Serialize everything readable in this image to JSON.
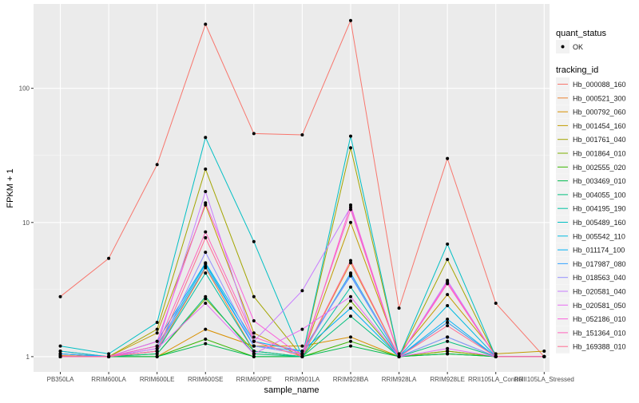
{
  "chart_data": {
    "type": "line",
    "title": "",
    "xlabel": "sample_name",
    "ylabel": "FPKM + 1",
    "yscale": "log10",
    "ylim": [
      0.77,
      425
    ],
    "yticks": [
      1,
      10,
      100
    ],
    "ytick_labels": [
      "1",
      "10",
      "100"
    ],
    "grid": true,
    "legend_placement": "right",
    "categories": [
      "PB350LA",
      "RRIM600LA",
      "RRIM600LE",
      "RRIM600SE",
      "RRIM600PE",
      "RRIM901LA",
      "RRIM928BA",
      "RRIM928LA",
      "RRIM928LE",
      "RRII105LA_Control",
      "RRII105LA_Stressed"
    ],
    "shape_legend": {
      "title": "quant_status",
      "entries": [
        "OK"
      ]
    },
    "color_legend_title": "tracking_id",
    "series": [
      {
        "name": "Hb_000088_160",
        "color": "#F8766D",
        "values": [
          2.8,
          5.4,
          27,
          300,
          46,
          45,
          320,
          2.3,
          30,
          2.5,
          1.0
        ]
      },
      {
        "name": "Hb_000521_300",
        "color": "#EA8331",
        "values": [
          1.02,
          1.0,
          1.1,
          4.6,
          1.1,
          1.0,
          5.0,
          1.0,
          1.8,
          1.0,
          1.0
        ]
      },
      {
        "name": "Hb_000792_060",
        "color": "#D89000",
        "values": [
          1.05,
          1.0,
          1.0,
          1.6,
          1.2,
          1.2,
          1.4,
          1.0,
          1.1,
          1.0,
          1.0
        ]
      },
      {
        "name": "Hb_001454_160",
        "color": "#C09B00",
        "values": [
          1.05,
          1.0,
          1.5,
          13.5,
          1.5,
          1.0,
          10.0,
          1.05,
          2.9,
          1.05,
          1.1
        ]
      },
      {
        "name": "Hb_001761_040",
        "color": "#A3A500",
        "values": [
          1.1,
          1.0,
          1.6,
          25,
          2.8,
          1.0,
          36,
          1.0,
          5.3,
          1.0,
          1.0
        ]
      },
      {
        "name": "Hb_001864_010",
        "color": "#7CAE00",
        "values": [
          1.0,
          1.0,
          1.05,
          2.7,
          1.1,
          1.0,
          2.6,
          1.0,
          1.1,
          1.0,
          1.0
        ]
      },
      {
        "name": "Hb_002555_020",
        "color": "#39B600",
        "values": [
          1.0,
          1.0,
          1.0,
          1.35,
          1.0,
          1.0,
          1.3,
          1.0,
          1.05,
          1.0,
          1.0
        ]
      },
      {
        "name": "Hb_003469_010",
        "color": "#00BB4E",
        "values": [
          1.0,
          1.0,
          1.0,
          1.25,
          1.0,
          1.0,
          1.2,
          1.0,
          1.05,
          1.0,
          1.0
        ]
      },
      {
        "name": "Hb_004055_100",
        "color": "#00BF7D",
        "values": [
          1.0,
          1.0,
          1.05,
          2.8,
          1.05,
          1.0,
          2.0,
          1.0,
          1.3,
          1.0,
          1.0
        ]
      },
      {
        "name": "Hb_004195_190",
        "color": "#00C1A3",
        "values": [
          1.0,
          1.0,
          1.1,
          4.2,
          1.1,
          1.0,
          3.3,
          1.0,
          1.4,
          1.0,
          1.0
        ]
      },
      {
        "name": "Hb_005489_160",
        "color": "#00BFC4",
        "values": [
          1.2,
          1.05,
          1.8,
          43,
          7.2,
          1.0,
          44,
          1.0,
          6.9,
          1.0,
          1.0
        ]
      },
      {
        "name": "Hb_005542_110",
        "color": "#00BAE0",
        "values": [
          1.1,
          1.0,
          1.2,
          4.9,
          1.2,
          1.05,
          4.2,
          1.0,
          2.4,
          1.0,
          1.0
        ]
      },
      {
        "name": "Hb_011174_100",
        "color": "#00B0F6",
        "values": [
          1.05,
          1.0,
          1.3,
          5.0,
          1.3,
          1.1,
          2.3,
          1.0,
          1.9,
          1.0,
          1.0
        ]
      },
      {
        "name": "Hb_017987_080",
        "color": "#35A2FF",
        "values": [
          1.05,
          1.0,
          1.15,
          4.7,
          1.2,
          1.1,
          4.0,
          1.0,
          1.8,
          1.0,
          1.0
        ]
      },
      {
        "name": "Hb_018563_040",
        "color": "#9590FF",
        "values": [
          1.0,
          1.0,
          1.1,
          6.0,
          1.2,
          1.05,
          4.1,
          1.0,
          1.4,
          1.0,
          1.0
        ]
      },
      {
        "name": "Hb_020581_040",
        "color": "#C77CFF",
        "values": [
          1.0,
          1.0,
          1.2,
          17,
          1.3,
          3.1,
          13,
          1.0,
          3.7,
          1.0,
          1.0
        ]
      },
      {
        "name": "Hb_020581_050",
        "color": "#E76BF3",
        "values": [
          1.0,
          1.0,
          1.15,
          2.5,
          1.05,
          1.6,
          2.8,
          1.0,
          1.15,
          1.0,
          1.0
        ]
      },
      {
        "name": "Hb_052186_010",
        "color": "#FA62DB",
        "values": [
          1.0,
          1.0,
          1.3,
          14,
          1.85,
          1.0,
          13.5,
          1.0,
          3.6,
          1.0,
          1.0
        ]
      },
      {
        "name": "Hb_151364_010",
        "color": "#FF62BC",
        "values": [
          1.0,
          1.0,
          1.2,
          8.5,
          1.4,
          1.05,
          12.5,
          1.0,
          3.5,
          1.0,
          1.0
        ]
      },
      {
        "name": "Hb_169388_010",
        "color": "#FF6C91",
        "values": [
          1.0,
          1.0,
          1.1,
          7.7,
          1.3,
          1.0,
          5.2,
          1.0,
          1.7,
          1.0,
          1.0
        ]
      }
    ]
  }
}
